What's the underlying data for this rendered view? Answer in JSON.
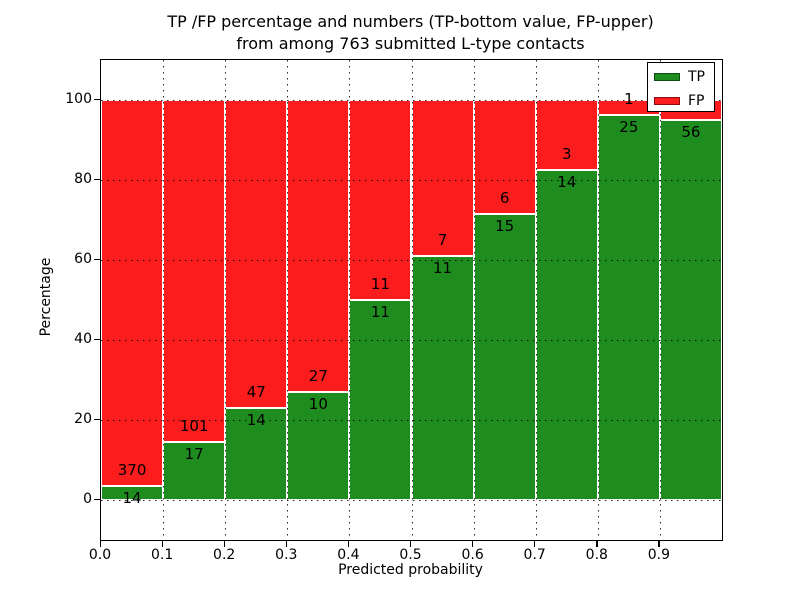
{
  "chart_data": {
    "type": "bar",
    "stacked": true,
    "units": "percent",
    "title_lines": [
      "TP /FP percentage and numbers (TP-bottom value, FP-upper)",
      "from among 763 submitted L-type contacts"
    ],
    "xlabel": "Predicted probability",
    "ylabel": "Percentage",
    "xlim": [
      0.0,
      1.0
    ],
    "ylim": [
      -10,
      110
    ],
    "xtick_labels": [
      "0.0",
      "0.1",
      "0.2",
      "0.3",
      "0.4",
      "0.5",
      "0.6",
      "0.7",
      "0.8",
      "0.9"
    ],
    "ytick_values": [
      0,
      20,
      40,
      60,
      80,
      100
    ],
    "grid": "dotted-black",
    "colors": {
      "tp": "#1e8c1e",
      "fp": "#fb1d1d",
      "bar_edge": "#ffffff"
    },
    "legend": {
      "position": "upper-right",
      "entries": [
        {
          "label": "TP",
          "color": "#1e8c1e"
        },
        {
          "label": "FP",
          "color": "#fb1d1d"
        }
      ]
    },
    "bars": [
      {
        "x_range": [
          0.0,
          0.1
        ],
        "tp_count": 14,
        "fp_count": 370,
        "tp_pct": 3.6
      },
      {
        "x_range": [
          0.1,
          0.2
        ],
        "tp_count": 17,
        "fp_count": 101,
        "tp_pct": 14.4
      },
      {
        "x_range": [
          0.2,
          0.3
        ],
        "tp_count": 14,
        "fp_count": 47,
        "tp_pct": 23.0
      },
      {
        "x_range": [
          0.3,
          0.4
        ],
        "tp_count": 10,
        "fp_count": 27,
        "tp_pct": 27.0
      },
      {
        "x_range": [
          0.4,
          0.5
        ],
        "tp_count": 11,
        "fp_count": 11,
        "tp_pct": 50.0
      },
      {
        "x_range": [
          0.5,
          0.6
        ],
        "tp_count": 11,
        "fp_count": 7,
        "tp_pct": 61.1
      },
      {
        "x_range": [
          0.6,
          0.7
        ],
        "tp_count": 15,
        "fp_count": 6,
        "tp_pct": 71.4
      },
      {
        "x_range": [
          0.7,
          0.8
        ],
        "tp_count": 14,
        "fp_count": 3,
        "tp_pct": 82.4
      },
      {
        "x_range": [
          0.8,
          0.9
        ],
        "tp_count": 25,
        "fp_count": 1,
        "tp_pct": 96.2
      },
      {
        "x_range": [
          0.9,
          1.0
        ],
        "tp_count": 56,
        "fp_count": null,
        "tp_pct": 94.9,
        "fp_label_hidden_behind_legend": true
      }
    ]
  }
}
